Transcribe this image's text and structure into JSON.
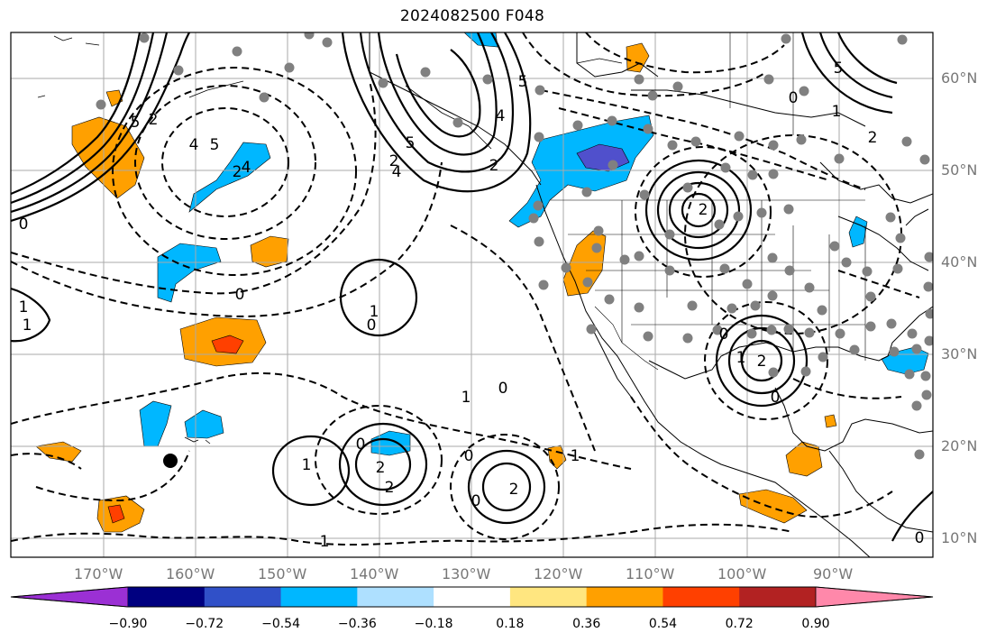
{
  "title": "2024082500 F048",
  "lat_labels": [
    "60°N",
    "50°N",
    "40°N",
    "30°N",
    "20°N",
    "10°N"
  ],
  "lon_labels": [
    "170°W",
    "160°W",
    "150°W",
    "140°W",
    "130°W",
    "120°W",
    "110°W",
    "100°W",
    "90°W"
  ],
  "colorbar": {
    "colors": [
      "#9b30d4",
      "#000080",
      "#3050c8",
      "#00b7ff",
      "#aee0ff",
      "#ffffff",
      "#ffe680",
      "#ffa000",
      "#ff4000",
      "#b22222",
      "#ff88aa"
    ],
    "ticks": [
      "−0.90",
      "−0.72",
      "−0.54",
      "−0.36",
      "−0.18",
      "0.18",
      "0.36",
      "0.54",
      "0.72",
      "0.90"
    ]
  },
  "contour_labels": [
    "5",
    "2",
    "4",
    "5",
    "2",
    "4",
    "5",
    "4",
    "2",
    "5",
    "4",
    "2",
    "0",
    "0",
    "1",
    "0",
    "1",
    "1",
    "2",
    "2",
    "1",
    "0",
    "2",
    "1",
    "2",
    "0",
    "0",
    "2",
    "1",
    "0",
    "0",
    "1",
    "1",
    "0",
    "5",
    "2",
    "1",
    "0",
    "0"
  ]
}
